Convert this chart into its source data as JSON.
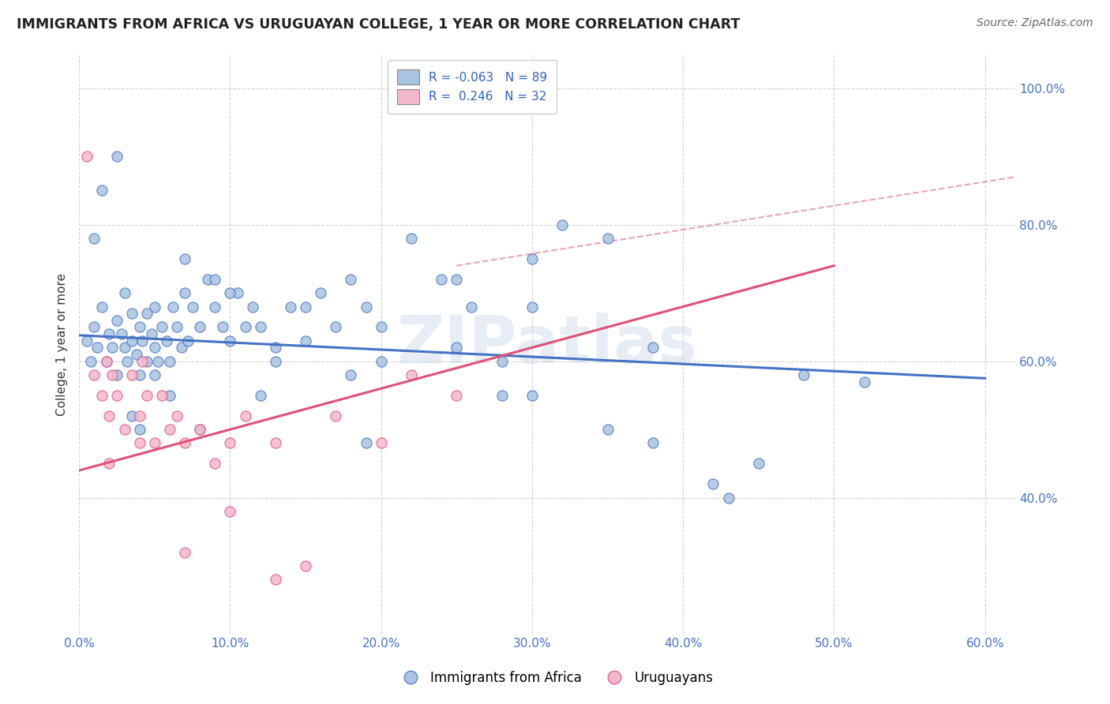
{
  "title": "IMMIGRANTS FROM AFRICA VS URUGUAYAN COLLEGE, 1 YEAR OR MORE CORRELATION CHART",
  "source": "Source: ZipAtlas.com",
  "ylabel": "College, 1 year or more",
  "xlim": [
    0.0,
    0.62
  ],
  "ylim": [
    0.2,
    1.05
  ],
  "xtick_labels": [
    "0.0%",
    "10.0%",
    "20.0%",
    "30.0%",
    "40.0%",
    "50.0%",
    "60.0%"
  ],
  "xtick_values": [
    0.0,
    0.1,
    0.2,
    0.3,
    0.4,
    0.5,
    0.6
  ],
  "ytick_labels": [
    "40.0%",
    "60.0%",
    "80.0%",
    "100.0%"
  ],
  "ytick_values": [
    0.4,
    0.6,
    0.8,
    1.0
  ],
  "color_blue": "#a8c4e0",
  "color_blue_dark": "#4472c4",
  "color_blue_line": "#4472c4",
  "color_pink": "#f4b8cc",
  "color_pink_dark": "#e05078",
  "color_pink_line": "#e05078",
  "color_dashed": "#e08090",
  "watermark_text": "ZIPatlas",
  "blue_scatter_x": [
    0.005,
    0.008,
    0.01,
    0.012,
    0.015,
    0.018,
    0.02,
    0.022,
    0.025,
    0.025,
    0.028,
    0.03,
    0.03,
    0.032,
    0.035,
    0.035,
    0.038,
    0.04,
    0.04,
    0.042,
    0.045,
    0.045,
    0.048,
    0.05,
    0.05,
    0.052,
    0.055,
    0.058,
    0.06,
    0.062,
    0.065,
    0.068,
    0.07,
    0.072,
    0.075,
    0.08,
    0.085,
    0.09,
    0.095,
    0.1,
    0.105,
    0.11,
    0.115,
    0.12,
    0.13,
    0.14,
    0.15,
    0.16,
    0.17,
    0.18,
    0.19,
    0.2,
    0.22,
    0.24,
    0.26,
    0.28,
    0.3,
    0.32,
    0.35,
    0.38,
    0.42,
    0.45,
    0.48,
    0.52,
    0.35,
    0.28,
    0.19,
    0.13,
    0.09,
    0.06,
    0.04,
    0.025,
    0.015,
    0.01,
    0.07,
    0.1,
    0.15,
    0.2,
    0.25,
    0.3,
    0.38,
    0.43,
    0.3,
    0.25,
    0.18,
    0.12,
    0.08,
    0.05,
    0.035
  ],
  "blue_scatter_y": [
    0.63,
    0.6,
    0.65,
    0.62,
    0.68,
    0.6,
    0.64,
    0.62,
    0.66,
    0.58,
    0.64,
    0.62,
    0.7,
    0.6,
    0.63,
    0.67,
    0.61,
    0.65,
    0.58,
    0.63,
    0.67,
    0.6,
    0.64,
    0.62,
    0.68,
    0.6,
    0.65,
    0.63,
    0.6,
    0.68,
    0.65,
    0.62,
    0.7,
    0.63,
    0.68,
    0.65,
    0.72,
    0.68,
    0.65,
    0.63,
    0.7,
    0.65,
    0.68,
    0.65,
    0.62,
    0.68,
    0.63,
    0.7,
    0.65,
    0.72,
    0.68,
    0.65,
    0.78,
    0.72,
    0.68,
    0.6,
    0.75,
    0.8,
    0.78,
    0.62,
    0.42,
    0.45,
    0.58,
    0.57,
    0.5,
    0.55,
    0.48,
    0.6,
    0.72,
    0.55,
    0.5,
    0.9,
    0.85,
    0.78,
    0.75,
    0.7,
    0.68,
    0.6,
    0.72,
    0.55,
    0.48,
    0.4,
    0.68,
    0.62,
    0.58,
    0.55,
    0.5,
    0.58,
    0.52
  ],
  "pink_scatter_x": [
    0.005,
    0.01,
    0.015,
    0.018,
    0.02,
    0.022,
    0.025,
    0.03,
    0.035,
    0.04,
    0.042,
    0.045,
    0.05,
    0.055,
    0.06,
    0.065,
    0.07,
    0.08,
    0.09,
    0.1,
    0.11,
    0.13,
    0.15,
    0.17,
    0.2,
    0.22,
    0.25,
    0.02,
    0.04,
    0.07,
    0.1,
    0.13
  ],
  "pink_scatter_y": [
    0.9,
    0.58,
    0.55,
    0.6,
    0.52,
    0.58,
    0.55,
    0.5,
    0.58,
    0.52,
    0.6,
    0.55,
    0.48,
    0.55,
    0.5,
    0.52,
    0.48,
    0.5,
    0.45,
    0.38,
    0.52,
    0.48,
    0.3,
    0.52,
    0.48,
    0.58,
    0.55,
    0.45,
    0.48,
    0.32,
    0.48,
    0.28
  ],
  "blue_line_x": [
    0.0,
    0.6
  ],
  "blue_line_y": [
    0.638,
    0.575
  ],
  "pink_line_x": [
    0.0,
    0.5
  ],
  "pink_line_y": [
    0.44,
    0.74
  ],
  "dashed_line_x": [
    0.25,
    0.62
  ],
  "dashed_line_y": [
    0.74,
    0.87
  ]
}
